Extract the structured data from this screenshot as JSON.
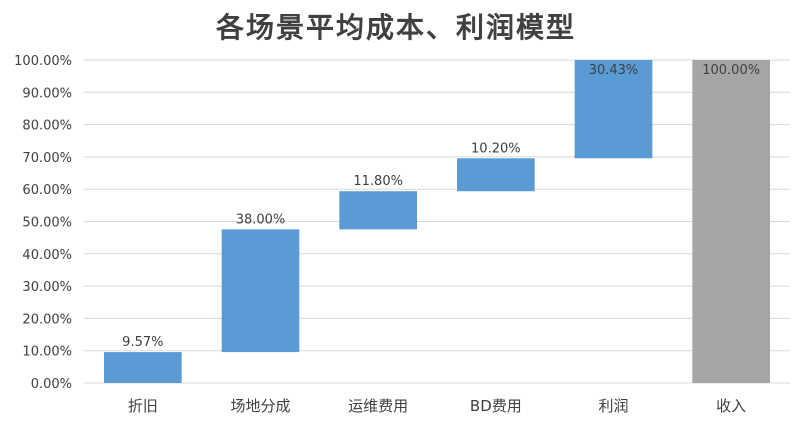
{
  "chart_data": {
    "type": "bar",
    "subtype": "waterfall",
    "title": "各场景平均成本、利润模型",
    "xlabel": "",
    "ylabel": "",
    "ylim": [
      0,
      100
    ],
    "y_tick_labels": [
      "0.00%",
      "10.00%",
      "20.00%",
      "30.00%",
      "40.00%",
      "50.00%",
      "60.00%",
      "70.00%",
      "80.00%",
      "90.00%",
      "100.00%"
    ],
    "y_ticks": [
      0,
      10,
      20,
      30,
      40,
      50,
      60,
      70,
      80,
      90,
      100
    ],
    "gridlines": true,
    "legend": "none",
    "categories": [
      "折旧",
      "场地分成",
      "运维费用",
      "BD费用",
      "利润",
      "收入"
    ],
    "bars": [
      {
        "category": "折旧",
        "base": 0,
        "top": 9.57,
        "label": "9.57%",
        "kind": "increment"
      },
      {
        "category": "场地分成",
        "base": 9.57,
        "top": 47.57,
        "label": "38.00%",
        "kind": "increment"
      },
      {
        "category": "运维费用",
        "base": 47.57,
        "top": 59.37,
        "label": "11.80%",
        "kind": "increment"
      },
      {
        "category": "BD费用",
        "base": 59.37,
        "top": 69.57,
        "label": "10.20%",
        "kind": "increment"
      },
      {
        "category": "利润",
        "base": 69.57,
        "top": 100,
        "label": "30.43%",
        "kind": "increment"
      },
      {
        "category": "收入",
        "base": 0,
        "top": 100,
        "label": "100.00%",
        "kind": "total"
      }
    ],
    "colors": {
      "increment": "#5b9bd5",
      "total": "#a5a5a5",
      "grid": "#d9d9d9",
      "text": "#404040"
    }
  }
}
